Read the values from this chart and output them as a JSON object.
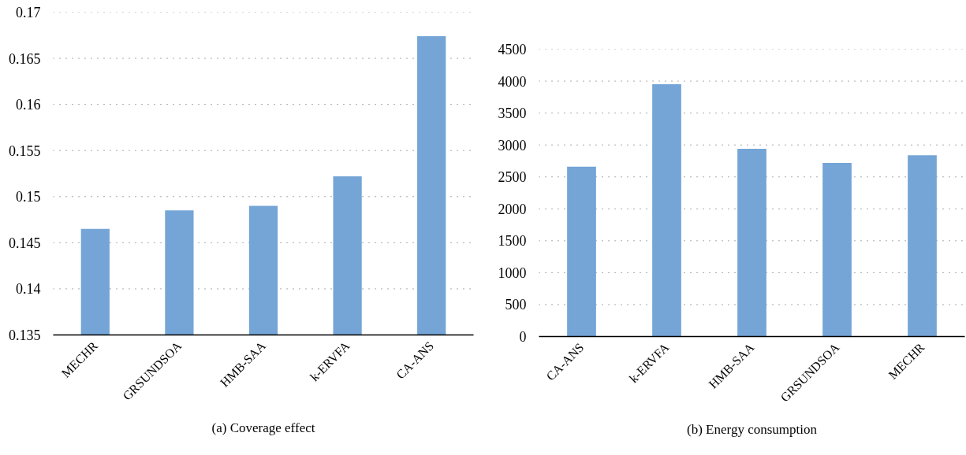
{
  "chart_data": [
    {
      "type": "bar",
      "title": "(a) Coverage effect",
      "categories": [
        "MECHR",
        "GRSUNDSOA",
        "HMB-SAA",
        "k-ERVFA",
        "CA-ANS"
      ],
      "values": [
        0.1465,
        0.1485,
        0.149,
        0.1522,
        0.1674
      ],
      "color": "#74a5d6",
      "ylim": [
        0.135,
        0.17
      ],
      "yticks": [
        0.135,
        0.14,
        0.145,
        0.15,
        0.155,
        0.16,
        0.165,
        0.17
      ],
      "grid": "y"
    },
    {
      "type": "bar",
      "title": "(b) Energy consumption",
      "categories": [
        "CA-ANS",
        "k-ERVFA",
        "HMB-SAA",
        "GRSUNDSOA",
        "MECHR"
      ],
      "values": [
        2660,
        3950,
        2940,
        2720,
        2840
      ],
      "color": "#74a5d6",
      "ylim": [
        0,
        4500
      ],
      "yticks": [
        0,
        500,
        1000,
        1500,
        2000,
        2500,
        3000,
        3500,
        4000,
        4500
      ],
      "grid": "y"
    }
  ]
}
